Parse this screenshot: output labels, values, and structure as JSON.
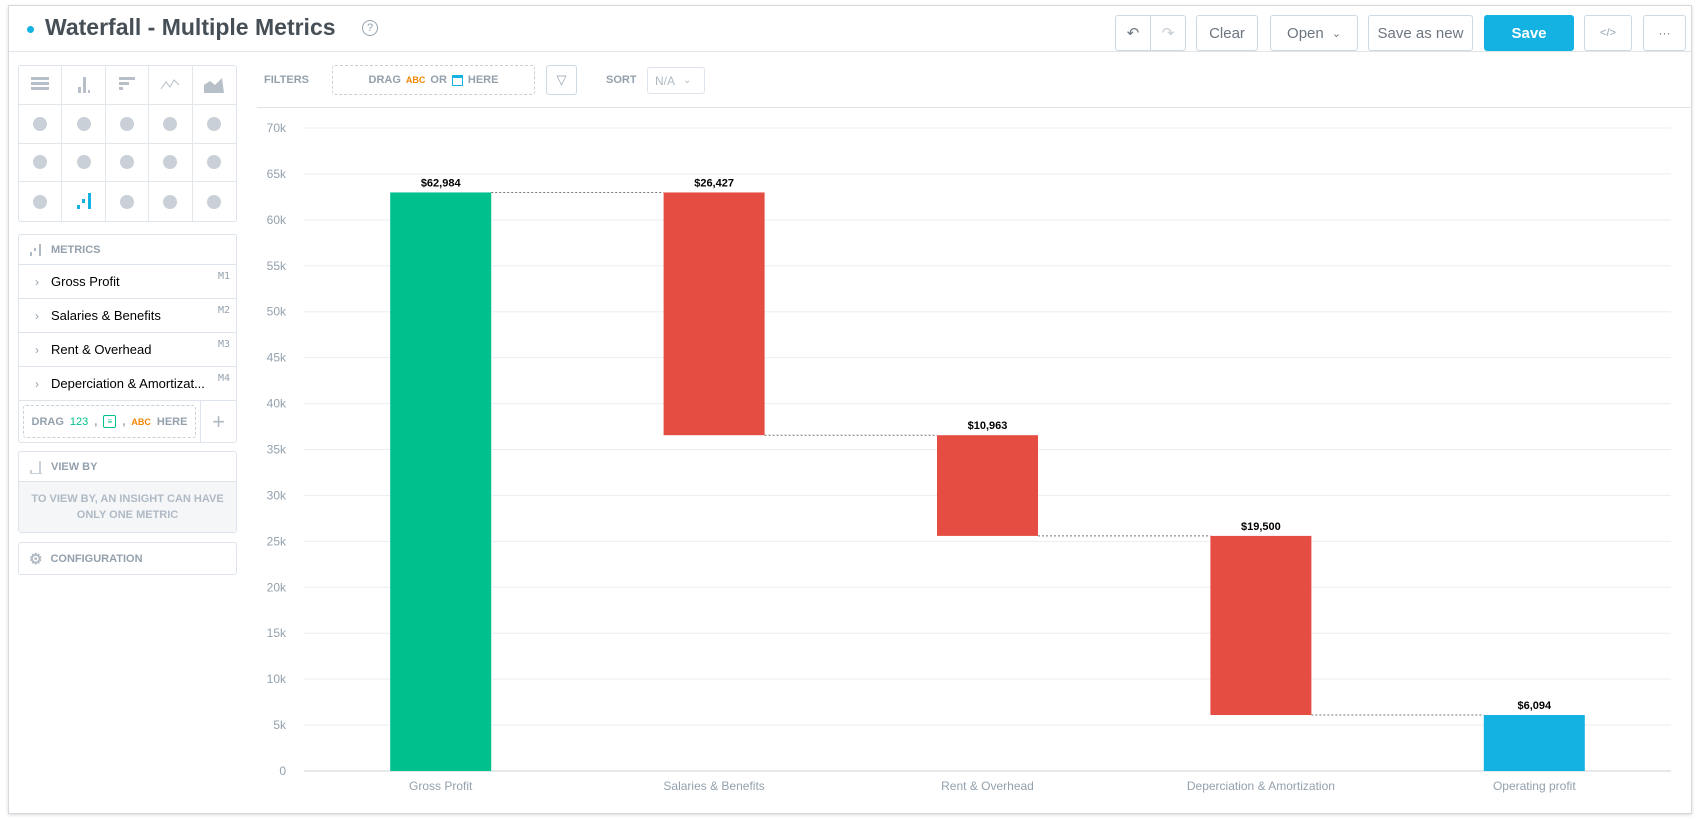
{
  "header": {
    "title": "Waterfall - Multiple Metrics",
    "help_icon": "?"
  },
  "toolbar": {
    "clear": "Clear",
    "open": "Open",
    "save_as_new": "Save as new",
    "save": "Save",
    "code": "</>",
    "more": "···"
  },
  "chart_types": [
    "table",
    "column",
    "bar",
    "line",
    "area",
    "combo",
    "headline",
    "scatter",
    "bubble",
    "pie",
    "donut",
    "treemap",
    "pyramid",
    "funnel",
    "heatmap",
    "bullet",
    "waterfall",
    "dependency-wheel",
    "sankey",
    "geo-pushpin"
  ],
  "selected_chart_type": "waterfall",
  "metrics": {
    "title": "METRICS",
    "items": [
      {
        "label": "Gross Profit",
        "tag": "M1"
      },
      {
        "label": "Salaries & Benefits",
        "tag": "M2"
      },
      {
        "label": "Rent & Overhead",
        "tag": "M3"
      },
      {
        "label": "Deperciation & Amortizat...",
        "tag": "M4"
      }
    ],
    "drag": {
      "drag": "DRAG",
      "num": "123",
      "comma": ",",
      "abc": "ABC",
      "here": "HERE"
    }
  },
  "view_by": {
    "title": "VIEW BY",
    "message": "TO VIEW BY, AN INSIGHT CAN HAVE ONLY ONE METRIC"
  },
  "configuration": {
    "title": "CONFIGURATION"
  },
  "filters": {
    "label": "FILTERS",
    "drag": "DRAG",
    "abc": "ABC",
    "or": "OR",
    "here": "HERE"
  },
  "sort": {
    "label": "SORT",
    "value": "N/A"
  },
  "colors": {
    "accent": "#14b2e2",
    "positive": "#00c18d",
    "negative": "#e54d42",
    "total": "#14b2e2"
  },
  "chart_data": {
    "type": "waterfall",
    "categories": [
      "Gross Profit",
      "Salaries & Benefits",
      "Rent & Overhead",
      "Deperciation & Amortization",
      "Operating profit"
    ],
    "values": [
      62984,
      -26427,
      -10963,
      -19500,
      6094
    ],
    "kinds": [
      "start",
      "decrease",
      "decrease",
      "decrease",
      "total"
    ],
    "labels": [
      "$62,984",
      "$26,427",
      "$10,963",
      "$19,500",
      "$6,094"
    ],
    "ylim": [
      0,
      70000
    ],
    "yticks": [
      "0",
      "5k",
      "10k",
      "15k",
      "20k",
      "25k",
      "30k",
      "35k",
      "40k",
      "45k",
      "50k",
      "55k",
      "60k",
      "65k",
      "70k"
    ],
    "grid": true,
    "legend": "none"
  }
}
